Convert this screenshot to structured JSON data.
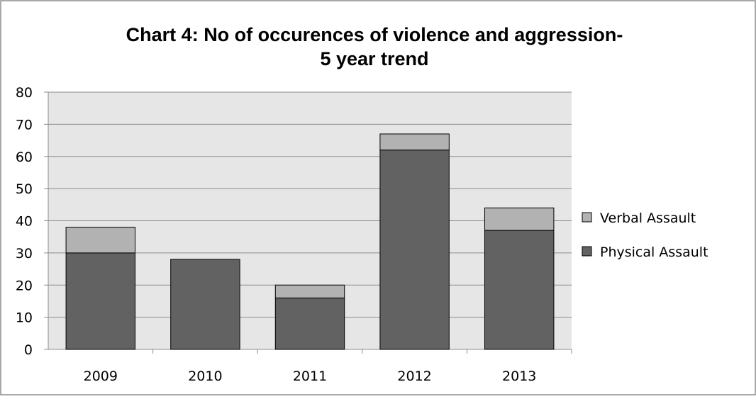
{
  "chart_data": {
    "type": "bar",
    "stacked": true,
    "title_lines": [
      "Chart 4: No of occurences of violence and aggression-",
      "5 year trend"
    ],
    "categories": [
      "2009",
      "2010",
      "2011",
      "2012",
      "2013"
    ],
    "series": [
      {
        "name": "Physical Assault",
        "values": [
          30,
          28,
          16,
          62,
          37
        ],
        "color": "#626262"
      },
      {
        "name": "Verbal Assault",
        "values": [
          8,
          0,
          4,
          5,
          7
        ],
        "color": "#b2b2b2"
      }
    ],
    "ylim": [
      0,
      80
    ],
    "yticks": [
      "0",
      "10",
      "20",
      "30",
      "40",
      "50",
      "60",
      "70",
      "80"
    ],
    "grid": true,
    "legend": {
      "placement": "right",
      "order": [
        "Verbal Assault",
        "Physical Assault"
      ]
    },
    "colors": {
      "plot_background": "#e6e6e6",
      "gridline": "#8c8c8c"
    }
  }
}
